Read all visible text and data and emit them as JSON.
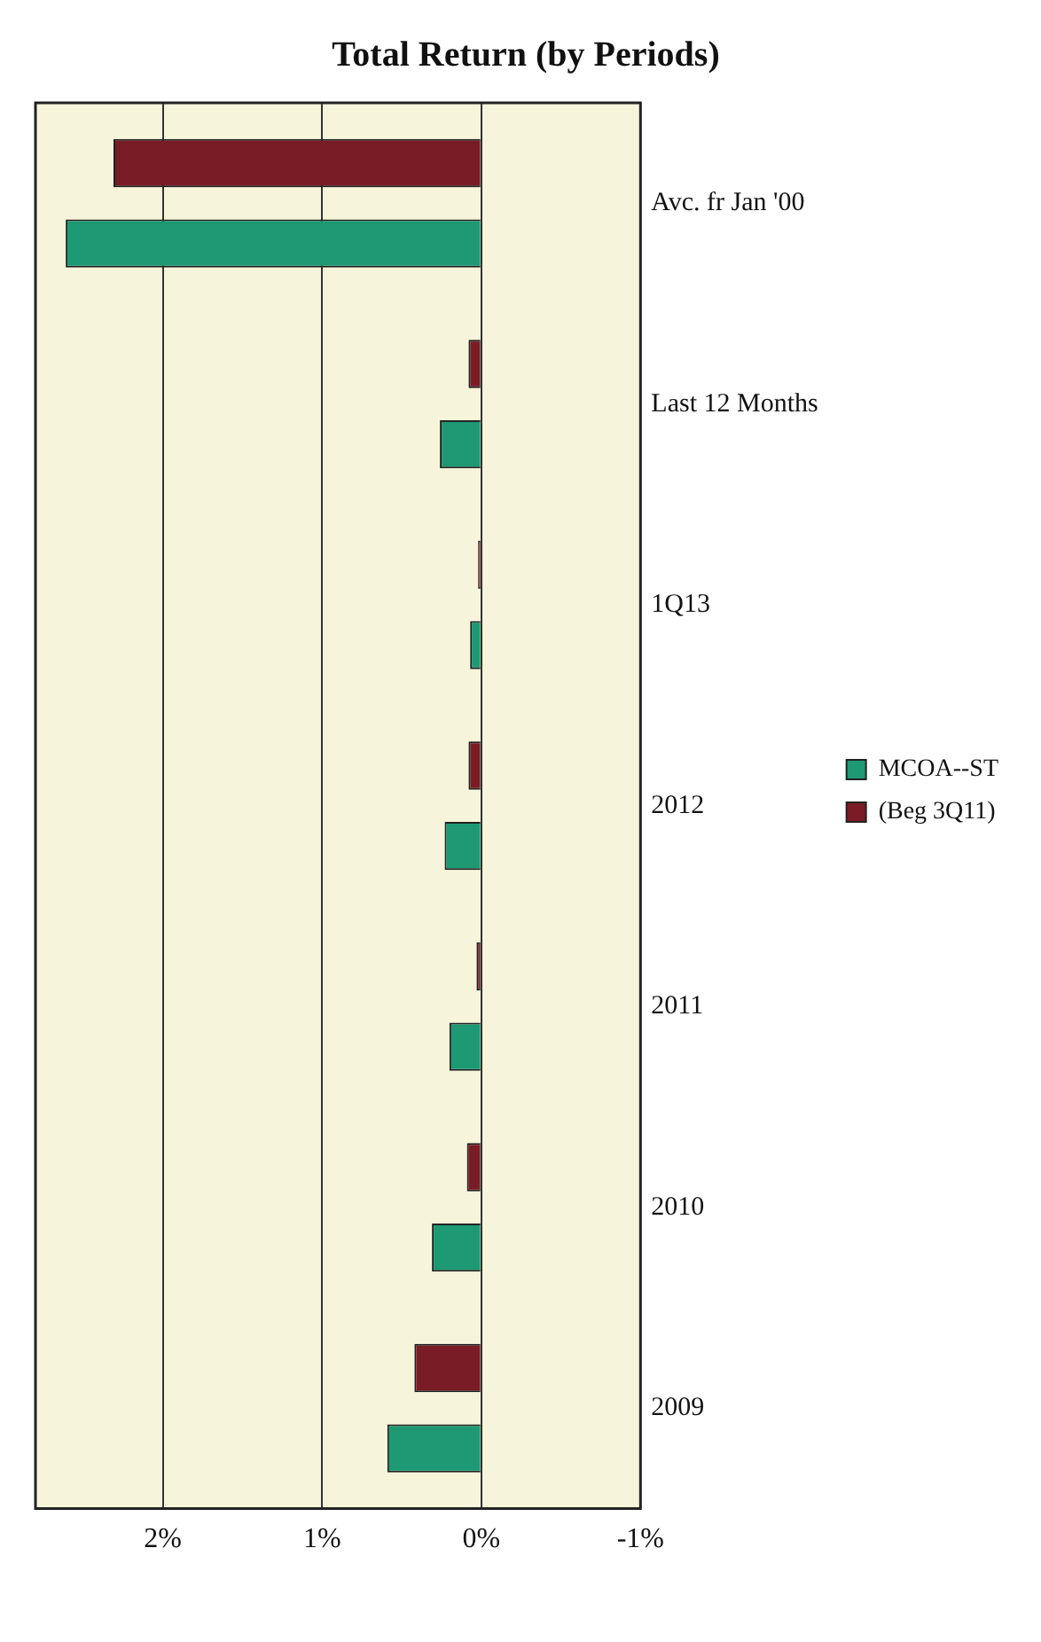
{
  "chart_data": {
    "type": "bar",
    "orientation": "horizontal",
    "title": "Total Return (by Periods)",
    "categories": [
      "Avc. fr Jan '00",
      "Last 12 Months",
      "1Q13",
      "2012",
      "2011",
      "2010",
      "2009"
    ],
    "series": [
      {
        "name": "MCOA--ST",
        "color": "#1d9a74",
        "values": [
          2.61,
          0.26,
          0.07,
          0.23,
          0.2,
          0.31,
          0.59
        ]
      },
      {
        "name": "(Beg 3Q11)",
        "color": "#7a1c26",
        "values": [
          2.31,
          0.08,
          0.02,
          0.08,
          0.03,
          0.09,
          0.42
        ]
      }
    ],
    "xlim": [
      2.8,
      -1
    ],
    "xticks": [
      {
        "value": 2,
        "label": "2%"
      },
      {
        "value": 1,
        "label": "1%"
      },
      {
        "value": 0,
        "label": "0%"
      },
      {
        "value": -1,
        "label": "-1%"
      }
    ],
    "grid": "x",
    "legend": "right"
  }
}
